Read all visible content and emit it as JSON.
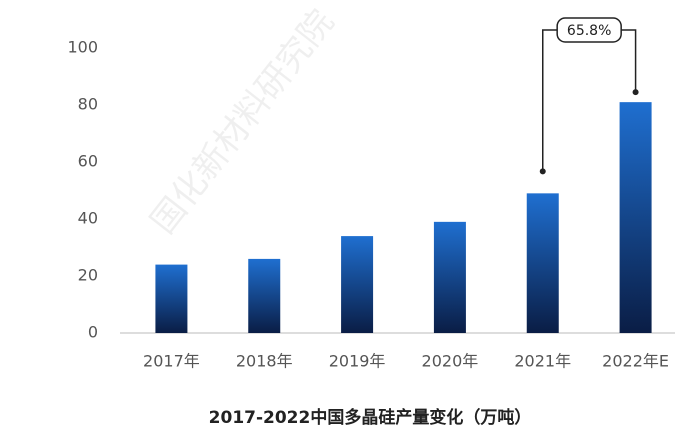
{
  "chart_data": {
    "type": "bar",
    "title": "2017-2022中国多晶硅产量变化（万吨）",
    "watermark": "国化新材料研究院",
    "categories": [
      "2017年",
      "2018年",
      "2019年",
      "2020年",
      "2021年",
      "2022年E"
    ],
    "values": [
      24,
      26,
      34,
      39,
      49,
      81
    ],
    "color": "#1a5fc0",
    "ylim": [
      0,
      100
    ],
    "yticks": [
      0,
      20,
      40,
      60,
      80,
      100
    ],
    "grid": false,
    "annotation": {
      "text": "65.8%",
      "from": 4,
      "to": 5
    }
  }
}
